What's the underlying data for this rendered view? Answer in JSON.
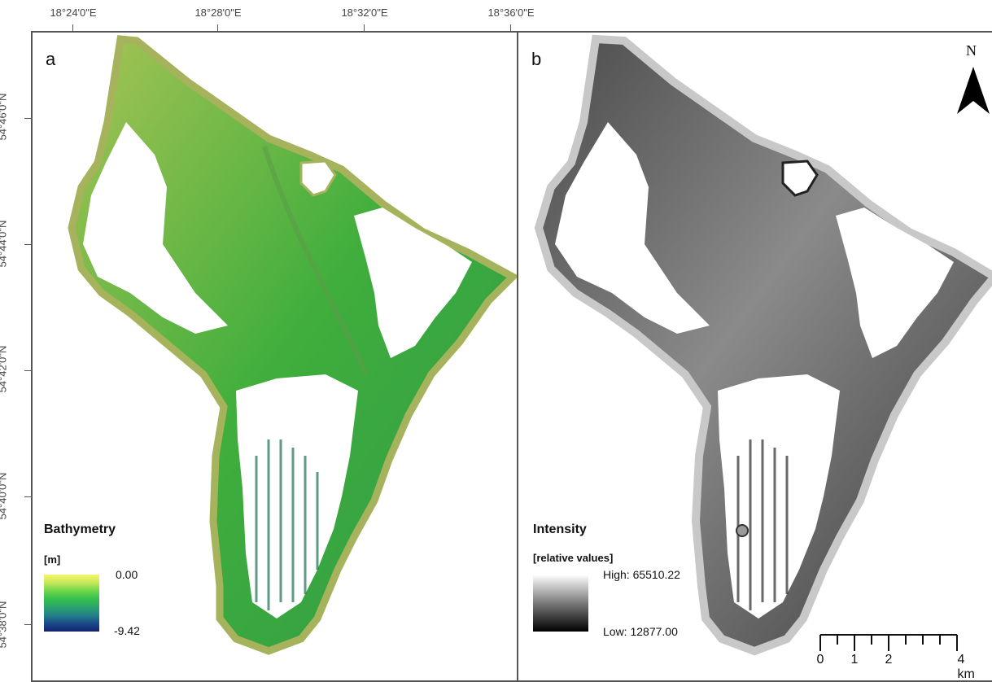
{
  "axes": {
    "longitude_labels": [
      "18°24'0\"E",
      "18°28'0\"E",
      "18°32'0\"E",
      "18°36'0\"E"
    ],
    "latitude_labels": [
      "54°46'0\"N",
      "54°44'0\"N",
      "54°42'0\"N",
      "54°40'0\"N",
      "54°38'0\"N"
    ]
  },
  "panel_a": {
    "label": "a",
    "legend_title": "Bathymetry",
    "legend_unit": "[m]",
    "max_label": "0.00",
    "min_label": "-9.42",
    "ramp_colors": [
      "#f7f56a",
      "#c6e85a",
      "#6ed64a",
      "#35c04e",
      "#2aa46c",
      "#24808a",
      "#1a4a88",
      "#14236e"
    ]
  },
  "panel_b": {
    "label": "b",
    "legend_title": "Intensity",
    "legend_unit": "[relative values]",
    "high_label": "High: 65510.22",
    "low_label": "Low: 12877.00",
    "ramp_colors": [
      "#ffffff",
      "#7a7a7a",
      "#000000"
    ]
  },
  "north_arrow": {
    "letter": "N"
  },
  "scale_bar": {
    "labels": [
      "0",
      "1",
      "2",
      "4 km"
    ]
  }
}
